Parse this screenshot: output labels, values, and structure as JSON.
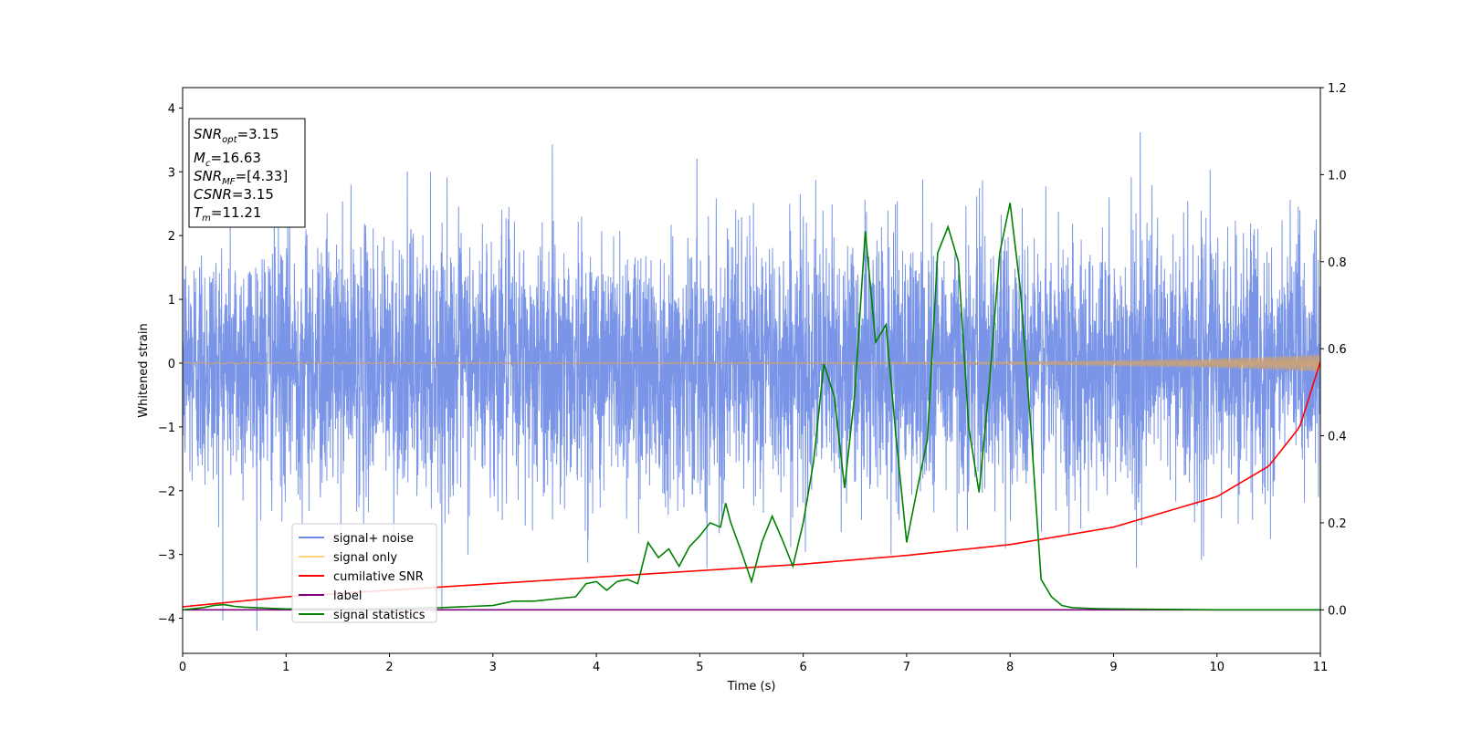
{
  "chart_data": {
    "type": "line",
    "xlabel": "Time (s)",
    "ylabel": "Whitened strain",
    "xlim": [
      0,
      11
    ],
    "ylim_left": [
      -4.55,
      4.32
    ],
    "ylim_right": [
      -0.1,
      1.2
    ],
    "x_ticks": [
      "0",
      "1",
      "2",
      "3",
      "4",
      "5",
      "6",
      "7",
      "8",
      "9",
      "10",
      "11"
    ],
    "y_ticks_left": [
      "−4",
      "−3",
      "−2",
      "−1",
      "0",
      "1",
      "2",
      "3",
      "4"
    ],
    "y_ticks_right": [
      "0.0",
      "0.2",
      "0.4",
      "0.6",
      "0.8",
      "1.0",
      "1.2"
    ],
    "annotation": {
      "snr_opt": {
        "name": "SNR",
        "sub": "opt",
        "value": "=3.15"
      },
      "mc": {
        "name": "M",
        "sub": "c",
        "value": "=16.63"
      },
      "snr_mf": {
        "name": "SNR",
        "sub": "MF",
        "value": "=[4.33]"
      },
      "csnr": {
        "name": "CSNR",
        "value": "=3.15"
      },
      "tm": {
        "name": "T",
        "sub": "m",
        "value": "=11.21"
      }
    },
    "legend": {
      "placement": "lower-left",
      "entries": [
        {
          "label": "signal+ noise",
          "color": "#6c8ae4"
        },
        {
          "label": "signal only",
          "color": "#ffd27f"
        },
        {
          "label": "cumilative SNR",
          "color": "#ff0000"
        },
        {
          "label": "label",
          "color": "#800080"
        },
        {
          "label": "signal statistics",
          "color": "#008000"
        }
      ]
    },
    "series": [
      {
        "name": "signal+ noise",
        "axis": "left",
        "color": "#6c8ae4",
        "description": "white gaussian noise, std ~1.0, sampled densely over 0-11 s",
        "noise_std": 1.0,
        "n_samples": 5500
      },
      {
        "name": "signal only",
        "axis": "left",
        "color": "#c9a27a",
        "description": "chirp with growing amplitude",
        "chirp_amplitude_end": 0.13
      },
      {
        "name": "cumilative SNR",
        "axis": "right",
        "color": "#ff0000",
        "x": [
          0,
          1,
          2,
          3,
          4,
          5,
          6,
          7,
          8,
          9,
          10,
          10.5,
          10.8,
          11
        ],
        "y": [
          0.007,
          0.03,
          0.045,
          0.06,
          0.075,
          0.09,
          0.105,
          0.125,
          0.15,
          0.19,
          0.26,
          0.33,
          0.42,
          0.57
        ]
      },
      {
        "name": "label",
        "axis": "right",
        "color": "#800080",
        "x": [
          0,
          11
        ],
        "y": [
          0.0,
          0.0
        ]
      },
      {
        "name": "signal statistics",
        "axis": "right",
        "color": "#008000",
        "x": [
          0,
          0.2,
          0.3,
          0.4,
          0.5,
          0.6,
          0.8,
          1.0,
          1.5,
          2.0,
          2.5,
          3.0,
          3.2,
          3.4,
          3.6,
          3.8,
          3.9,
          4.0,
          4.1,
          4.2,
          4.3,
          4.4,
          4.5,
          4.6,
          4.7,
          4.8,
          4.9,
          5.0,
          5.1,
          5.2,
          5.25,
          5.3,
          5.4,
          5.5,
          5.6,
          5.7,
          5.8,
          5.9,
          6.0,
          6.1,
          6.2,
          6.3,
          6.4,
          6.5,
          6.6,
          6.7,
          6.8,
          6.9,
          7.0,
          7.1,
          7.2,
          7.3,
          7.4,
          7.5,
          7.6,
          7.7,
          7.8,
          7.9,
          8.0,
          8.1,
          8.2,
          8.3,
          8.4,
          8.5,
          8.6,
          8.8,
          9.0,
          9.5,
          10.0,
          11.0
        ],
        "y": [
          0.0,
          0.005,
          0.01,
          0.012,
          0.008,
          0.006,
          0.004,
          0.002,
          0.002,
          0.003,
          0.005,
          0.01,
          0.02,
          0.02,
          0.025,
          0.03,
          0.06,
          0.065,
          0.045,
          0.065,
          0.07,
          0.06,
          0.155,
          0.12,
          0.14,
          0.1,
          0.145,
          0.17,
          0.2,
          0.19,
          0.245,
          0.2,
          0.135,
          0.065,
          0.155,
          0.215,
          0.16,
          0.1,
          0.2,
          0.34,
          0.565,
          0.49,
          0.28,
          0.5,
          0.87,
          0.615,
          0.655,
          0.39,
          0.155,
          0.275,
          0.39,
          0.82,
          0.88,
          0.8,
          0.42,
          0.27,
          0.52,
          0.82,
          0.935,
          0.735,
          0.42,
          0.07,
          0.03,
          0.01,
          0.005,
          0.003,
          0.002,
          0.001,
          0.0,
          0.0
        ]
      }
    ]
  }
}
